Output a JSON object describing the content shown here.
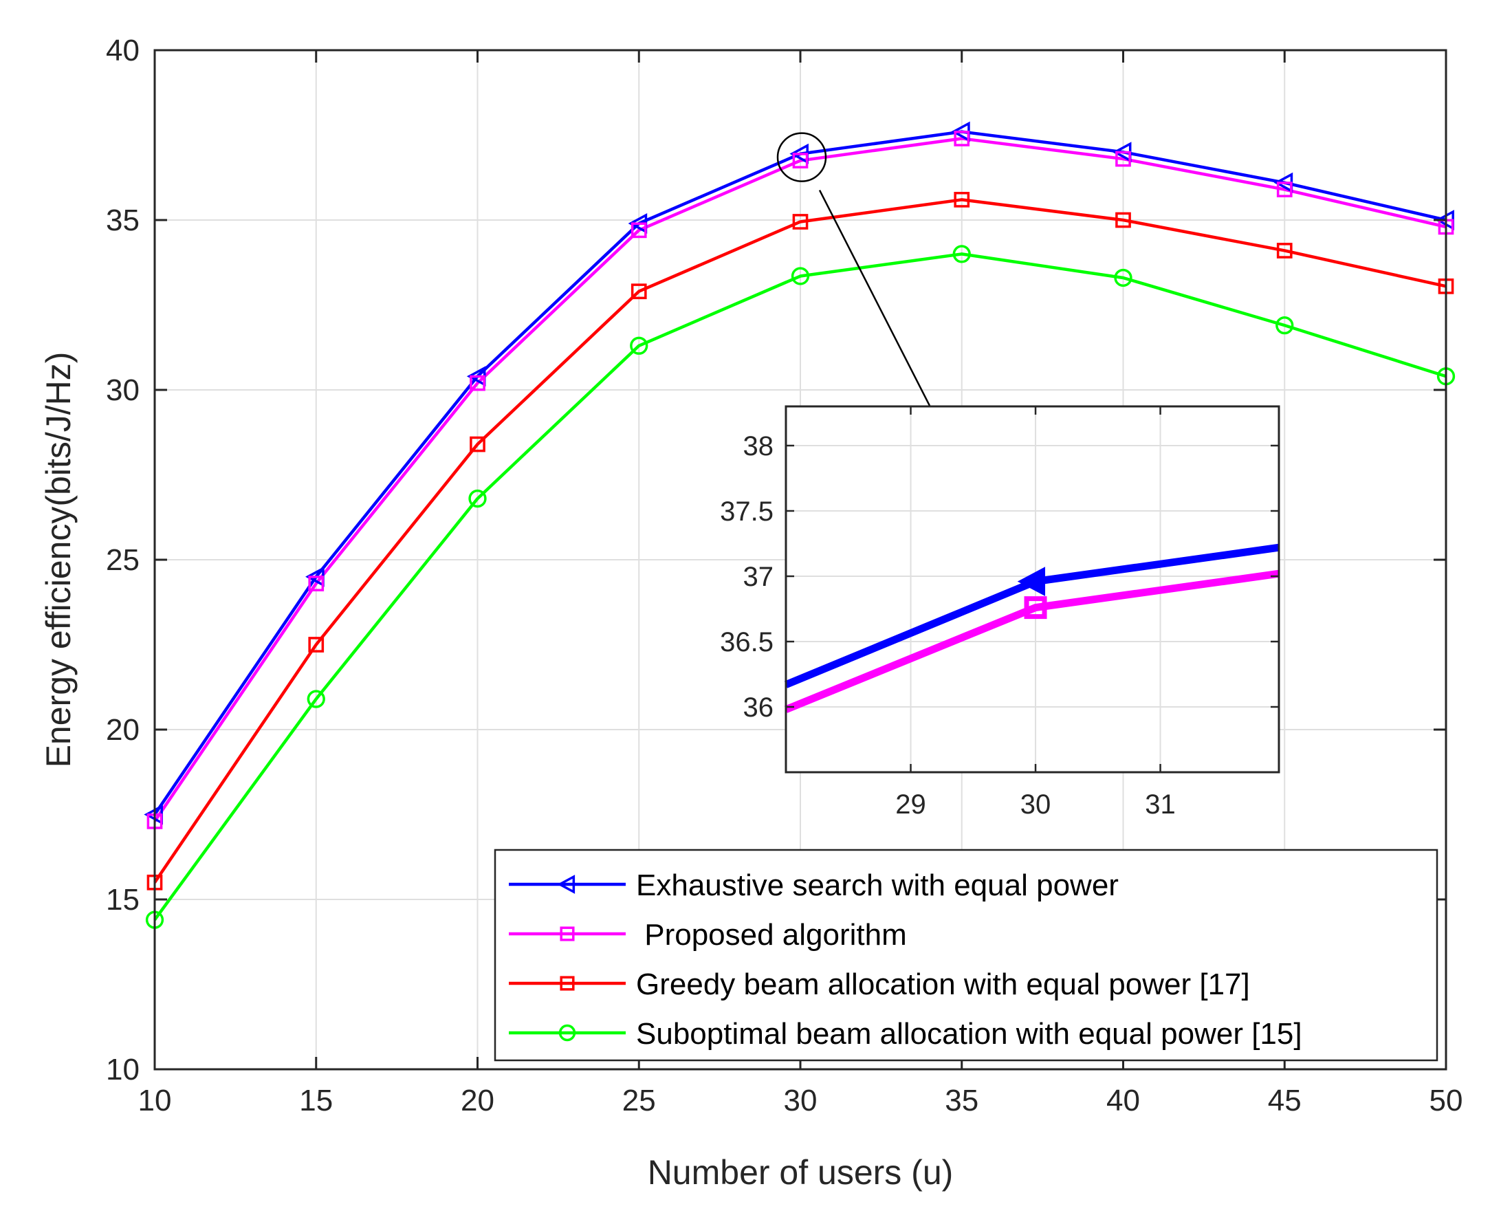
{
  "chart_data": {
    "type": "line",
    "xlabel": "Number of users (u)",
    "ylabel": "Energy efficiency(bits/J/Hz)",
    "xlim": [
      10,
      50
    ],
    "ylim": [
      10,
      40
    ],
    "xticks": [
      10,
      15,
      20,
      25,
      30,
      35,
      40,
      45,
      50
    ],
    "yticks": [
      10,
      15,
      20,
      25,
      30,
      35,
      40
    ],
    "grid": true,
    "legend_position": "bottom-right",
    "x": [
      10,
      15,
      20,
      25,
      30,
      35,
      40,
      45,
      50
    ],
    "series": [
      {
        "name": "Exhaustive search with equal power",
        "color": "#0000ff",
        "marker": "triangle-left",
        "values": [
          17.5,
          24.5,
          30.4,
          34.9,
          36.95,
          37.6,
          37.0,
          36.1,
          35.0
        ]
      },
      {
        "name": " Proposed algorithm",
        "color": "#ff00ff",
        "marker": "square",
        "values": [
          17.3,
          24.3,
          30.2,
          34.7,
          36.75,
          37.4,
          36.8,
          35.9,
          34.8
        ]
      },
      {
        "name": "Greedy beam allocation with equal power [17]",
        "color": "#ff0000",
        "marker": "square",
        "values": [
          15.5,
          22.5,
          28.4,
          32.9,
          34.95,
          35.6,
          35.0,
          34.1,
          33.05
        ]
      },
      {
        "name": "Suboptimal beam allocation with equal power [15]",
        "color": "#00ff00",
        "marker": "circle",
        "values": [
          14.4,
          20.9,
          26.8,
          31.3,
          33.35,
          34.0,
          33.3,
          31.9,
          30.4
        ]
      }
    ],
    "inset": {
      "xlim": [
        28,
        31.95
      ],
      "ylim": [
        35.5,
        38.3
      ],
      "xticks": [
        29,
        30,
        31
      ],
      "yticks": [
        36,
        36.5,
        37,
        37.5,
        38
      ],
      "ytick_labels": [
        "36",
        "36.5",
        "37",
        "37.5",
        "38"
      ],
      "grid": true,
      "series": [
        {
          "name": "Exhaustive search with equal power",
          "color": "#0000ff",
          "x": [
            28,
            30,
            31.95
          ],
          "values": [
            36.17,
            36.96,
            37.22
          ]
        },
        {
          "name": " Proposed algorithm",
          "color": "#ff00ff",
          "x": [
            28,
            30,
            31.95
          ],
          "values": [
            35.98,
            36.76,
            37.02
          ]
        }
      ]
    },
    "annotation": {
      "type": "zoom-callout",
      "target": {
        "x": 30,
        "y": 36.85
      }
    }
  }
}
